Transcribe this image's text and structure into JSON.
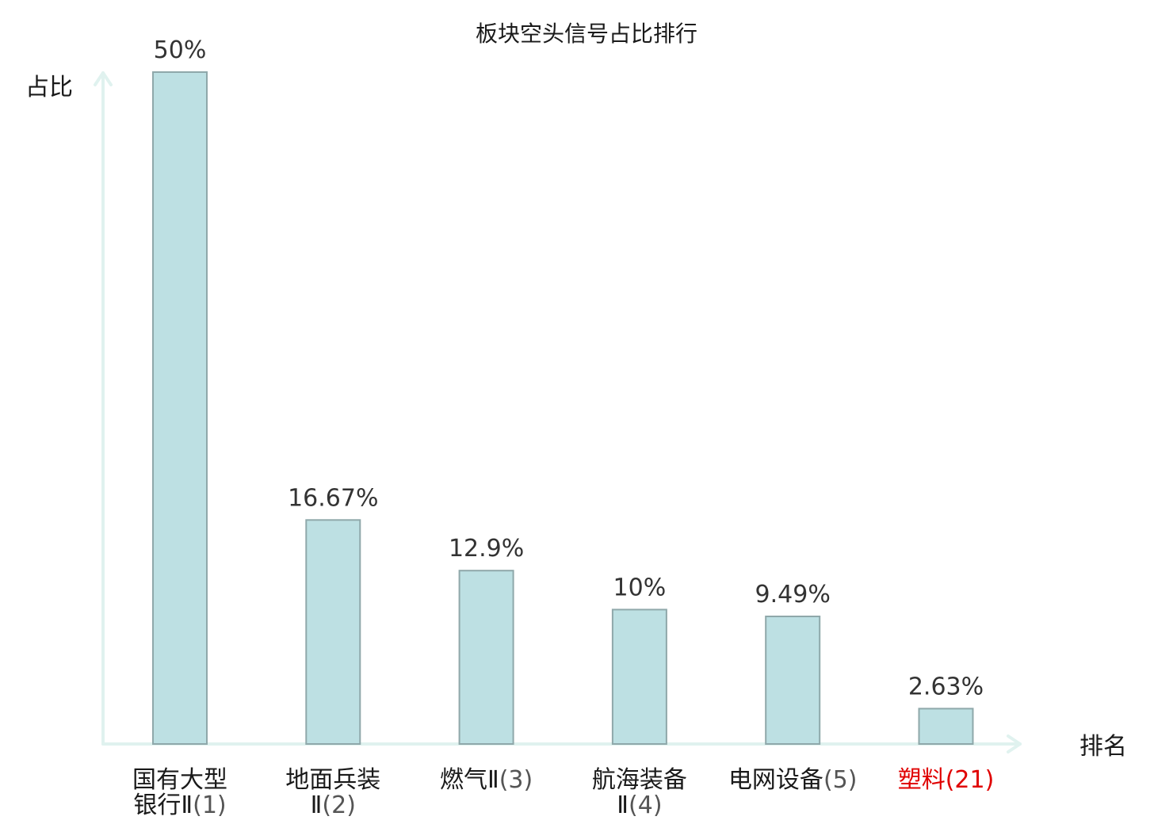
{
  "chart_data": {
    "type": "bar",
    "title": "板块空头信号占比排行",
    "ylabel": "占比",
    "xlabel": "排名",
    "ylim": [
      0,
      50
    ],
    "grid": false,
    "legend": "none",
    "categories": [
      {
        "lines": [
          "国有大型",
          "银行Ⅱ"
        ],
        "rank": "(1)",
        "highlight": false
      },
      {
        "lines": [
          "地面兵装",
          "Ⅱ"
        ],
        "rank": "(2)",
        "highlight": false
      },
      {
        "lines": [
          "燃气Ⅱ"
        ],
        "rank": "(3)",
        "highlight": false
      },
      {
        "lines": [
          "航海装备",
          "Ⅱ"
        ],
        "rank": "(4)",
        "highlight": false
      },
      {
        "lines": [
          "电网设备"
        ],
        "rank": "(5)",
        "highlight": false
      },
      {
        "lines": [
          "塑料"
        ],
        "rank": "(21)",
        "highlight": true
      }
    ],
    "values": [
      50,
      16.67,
      12.9,
      10,
      9.49,
      2.63
    ],
    "value_labels": [
      "50%",
      "16.67%",
      "12.9%",
      "10%",
      "9.49%",
      "2.63%"
    ],
    "colors": {
      "bar_fill": "#bde0e3",
      "bar_stroke": "#8fa8aa",
      "axis": "#e0f2ef",
      "text": "#1a1a1a",
      "rank_text": "#555555",
      "highlight": "#e00000"
    }
  }
}
